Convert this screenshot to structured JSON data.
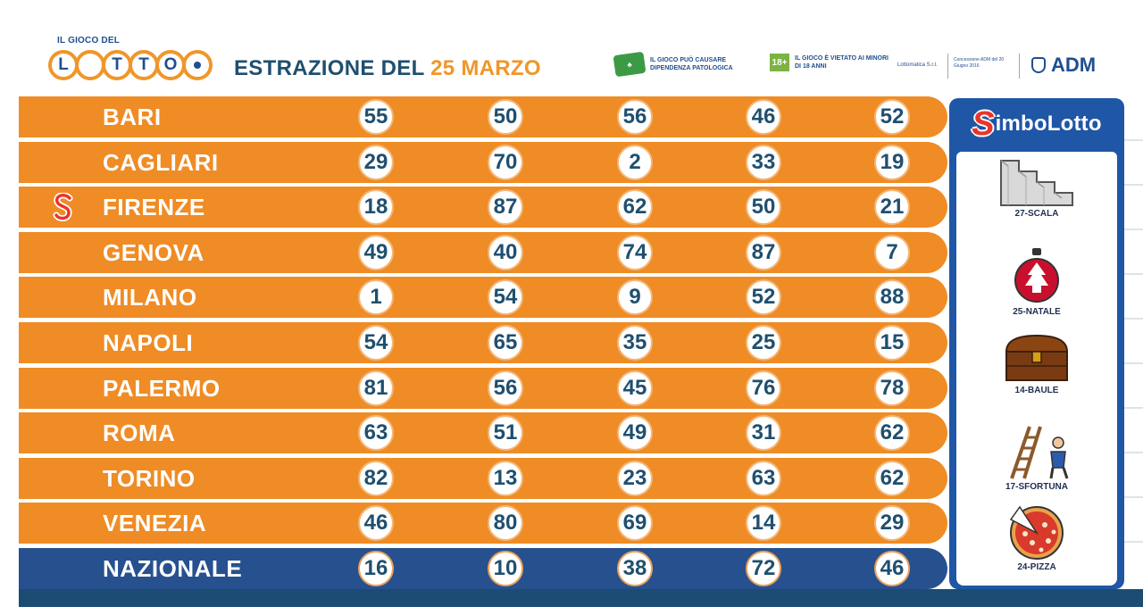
{
  "header": {
    "logo_top": "IL GIOCO DEL",
    "logo_letters": [
      "L",
      "T",
      "T",
      "O"
    ],
    "title_prefix": "ESTRAZIONE DEL",
    "title_date": "25 MARZO",
    "warning_1": "IL GIOCO PUÒ CAUSARE DIPENDENZA PATOLOGICA",
    "warning_2": "IL GIOCO È VIETATO AI MINORI DI 18 ANNI",
    "age_badge": "18+",
    "operator": "Lottomatica S.r.l.",
    "concession": "Concessione ADM del 20 Giugno 2016",
    "adm": "ADM"
  },
  "draws": [
    {
      "city": "BARI",
      "numbers": [
        "55",
        "50",
        "56",
        "46",
        "52"
      ]
    },
    {
      "city": "CAGLIARI",
      "numbers": [
        "29",
        "70",
        "2",
        "33",
        "19"
      ]
    },
    {
      "city": "FIRENZE",
      "numbers": [
        "18",
        "87",
        "62",
        "50",
        "21"
      ],
      "simbolotto": true
    },
    {
      "city": "GENOVA",
      "numbers": [
        "49",
        "40",
        "74",
        "87",
        "7"
      ]
    },
    {
      "city": "MILANO",
      "numbers": [
        "1",
        "54",
        "9",
        "52",
        "88"
      ]
    },
    {
      "city": "NAPOLI",
      "numbers": [
        "54",
        "65",
        "35",
        "25",
        "15"
      ]
    },
    {
      "city": "PALERMO",
      "numbers": [
        "81",
        "56",
        "45",
        "76",
        "78"
      ]
    },
    {
      "city": "ROMA",
      "numbers": [
        "63",
        "51",
        "49",
        "31",
        "62"
      ]
    },
    {
      "city": "TORINO",
      "numbers": [
        "82",
        "13",
        "23",
        "63",
        "62"
      ]
    },
    {
      "city": "VENEZIA",
      "numbers": [
        "46",
        "80",
        "69",
        "14",
        "29"
      ]
    },
    {
      "city": "NAZIONALE",
      "numbers": [
        "16",
        "10",
        "38",
        "72",
        "46"
      ]
    }
  ],
  "simbolotto": {
    "title_s": "S",
    "title_rest": "imboLotto",
    "symbols": [
      {
        "label": "27-SCALA",
        "icon": "stairs-icon"
      },
      {
        "label": "25-NATALE",
        "icon": "christmas-ornament-icon"
      },
      {
        "label": "14-BAULE",
        "icon": "chest-icon"
      },
      {
        "label": "17-SFORTUNA",
        "icon": "ladder-bad-luck-icon"
      },
      {
        "label": "24-PIZZA",
        "icon": "pizza-icon"
      }
    ]
  },
  "colors": {
    "row_orange": "#ef8c25",
    "nazionale_blue": "#27508f",
    "title_dark": "#1f4f6f",
    "accent_orange": "#f0962a",
    "panel_blue": "#1f56a6"
  }
}
